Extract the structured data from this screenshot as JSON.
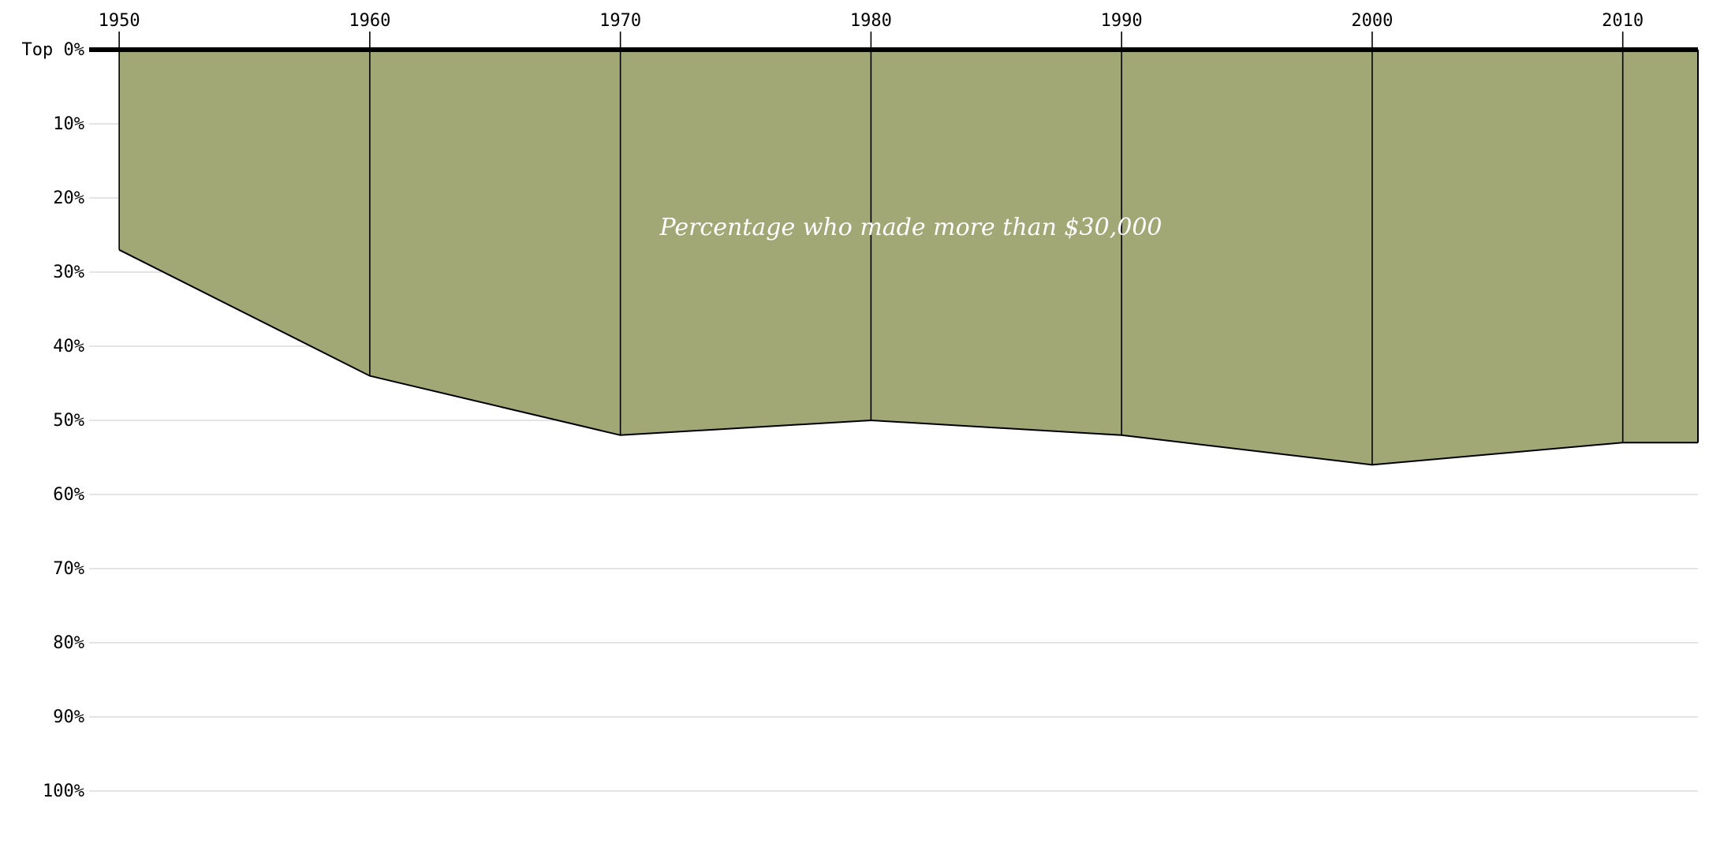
{
  "chart_data": {
    "type": "area",
    "x_ticks": [
      "1950",
      "1960",
      "1970",
      "1980",
      "1990",
      "2000",
      "2010"
    ],
    "y_ticks": [
      "Top 0%",
      "10%",
      "20%",
      "30%",
      "40%",
      "50%",
      "60%",
      "70%",
      "80%",
      "90%",
      "100%"
    ],
    "ylim": [
      0,
      100
    ],
    "xlim": [
      1948.8,
      2013
    ],
    "y_inverted": true,
    "grid": true,
    "series": [
      {
        "x": [
          1950,
          1960,
          1970,
          1980,
          1990,
          2000,
          2010,
          2013
        ],
        "y": [
          27,
          44,
          52,
          50,
          52,
          56,
          53,
          53
        ]
      }
    ],
    "annotation": "Percentage who made more than $30,000",
    "colors": {
      "fill": "#a1a875",
      "line": "#000000",
      "grid": "#d4d4d4",
      "annotation": "#ffffff"
    }
  }
}
